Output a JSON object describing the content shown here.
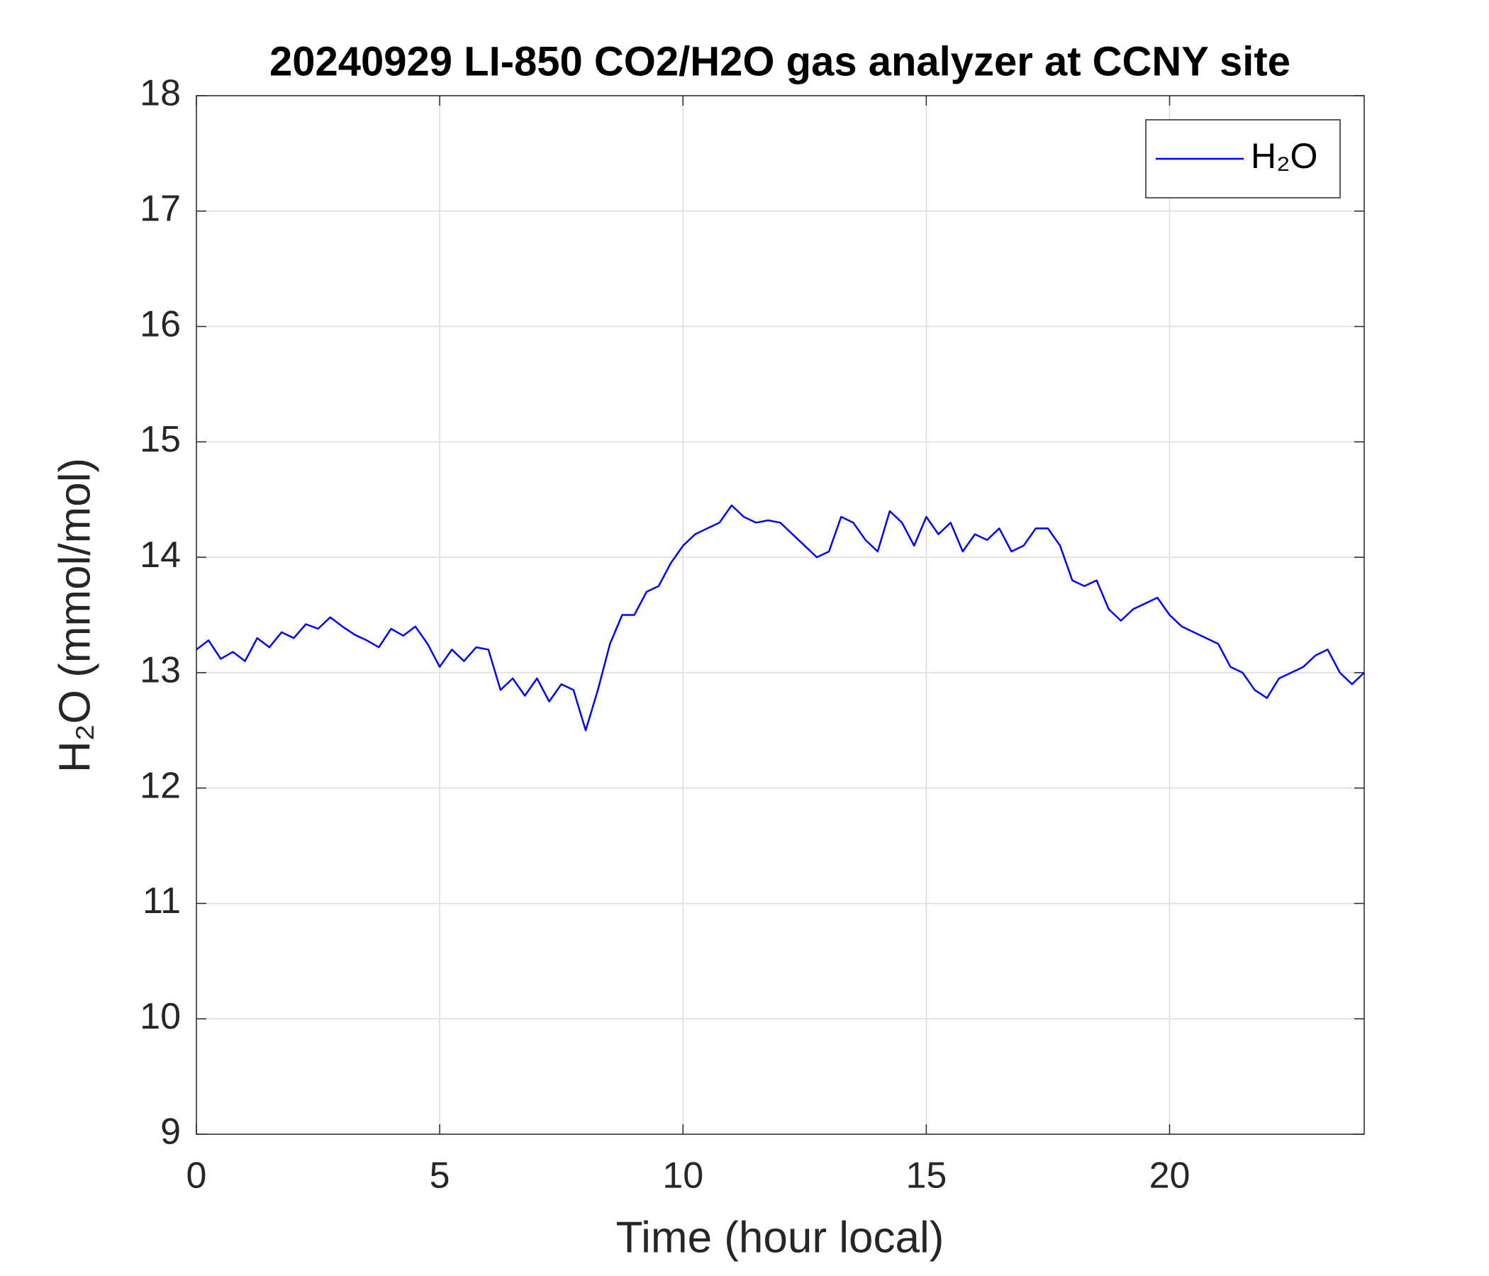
{
  "chart_data": {
    "type": "line",
    "title": "20240929 LI-850 CO2/H2O gas analyzer at CCNY site",
    "x_label": "Time (hour local)",
    "y_label": "H₂O (mmol/mol)",
    "xlim": [
      0,
      24
    ],
    "xticks": [
      0,
      5,
      10,
      15,
      20
    ],
    "ylim": [
      9,
      18
    ],
    "yticks": [
      9,
      10,
      11,
      12,
      13,
      14,
      15,
      16,
      17,
      18
    ],
    "grid": true,
    "legend": "upper right",
    "x": [
      0,
      0.25,
      0.5,
      0.75,
      1,
      1.25,
      1.5,
      1.75,
      2,
      2.25,
      2.5,
      2.75,
      3,
      3.25,
      3.5,
      3.75,
      4,
      4.25,
      4.5,
      4.75,
      5,
      5.25,
      5.5,
      5.75,
      6,
      6.25,
      6.5,
      6.75,
      7,
      7.25,
      7.5,
      7.75,
      8,
      8.25,
      8.5,
      8.75,
      9,
      9.25,
      9.5,
      9.75,
      10,
      10.25,
      10.5,
      10.75,
      11,
      11.25,
      11.5,
      11.75,
      12,
      12.25,
      12.5,
      12.75,
      13,
      13.25,
      13.5,
      13.75,
      14,
      14.25,
      14.5,
      14.75,
      15,
      15.25,
      15.5,
      15.75,
      16,
      16.25,
      16.5,
      16.75,
      17,
      17.25,
      17.5,
      17.75,
      18,
      18.25,
      18.5,
      18.75,
      19,
      19.25,
      19.5,
      19.75,
      20,
      20.25,
      20.5,
      20.75,
      21,
      21.25,
      21.5,
      21.75,
      22,
      22.25,
      22.5,
      22.75,
      23,
      23.25,
      23.5,
      23.75,
      24
    ],
    "series": [
      {
        "name": "H₂O",
        "color": "#0000ff",
        "values": [
          13.2,
          13.28,
          13.12,
          13.18,
          13.1,
          13.3,
          13.22,
          13.35,
          13.3,
          13.42,
          13.38,
          13.48,
          13.4,
          13.33,
          13.28,
          13.22,
          13.38,
          13.32,
          13.4,
          13.25,
          13.05,
          13.2,
          13.1,
          13.22,
          13.2,
          12.85,
          12.95,
          12.8,
          12.95,
          12.75,
          12.9,
          12.85,
          12.5,
          12.85,
          13.25,
          13.5,
          13.5,
          13.7,
          13.75,
          13.95,
          14.1,
          14.2,
          14.25,
          14.3,
          14.45,
          14.35,
          14.3,
          14.32,
          14.3,
          14.2,
          14.1,
          14.0,
          14.05,
          14.35,
          14.3,
          14.15,
          14.05,
          14.4,
          14.3,
          14.1,
          14.35,
          14.2,
          14.3,
          14.05,
          14.2,
          14.15,
          14.25,
          14.05,
          14.1,
          14.25,
          14.25,
          14.1,
          13.8,
          13.75,
          13.8,
          13.55,
          13.45,
          13.55,
          13.6,
          13.65,
          13.5,
          13.4,
          13.35,
          13.3,
          13.25,
          13.05,
          13.0,
          12.85,
          12.78,
          12.95,
          13.0,
          13.05,
          13.15,
          13.2,
          13.0,
          12.9,
          13.0
        ]
      }
    ]
  }
}
